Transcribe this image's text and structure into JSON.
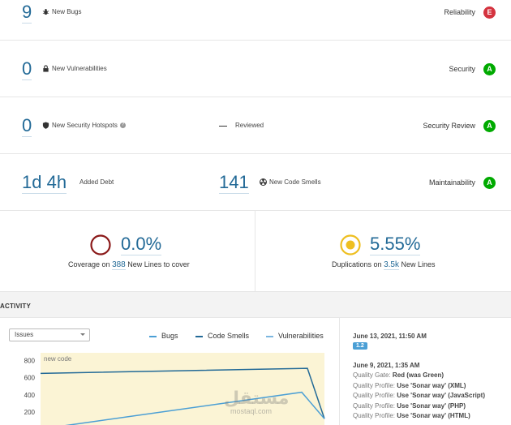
{
  "metrics": {
    "bugs": {
      "value": "9",
      "label": "New Bugs",
      "rating_label": "Reliability",
      "rating": "E"
    },
    "vulnerabilities": {
      "value": "0",
      "label": "New Vulnerabilities",
      "rating_label": "Security",
      "rating": "A"
    },
    "hotspots": {
      "value": "0",
      "label": "New Security Hotspots",
      "reviewed_label": "Reviewed",
      "rating_label": "Security Review",
      "rating": "A"
    },
    "debt": {
      "value": "1d 4h",
      "label": "Added Debt",
      "smells_value": "141",
      "smells_label": "New Code Smells",
      "rating_label": "Maintainability",
      "rating": "A"
    }
  },
  "coverage": {
    "value": "0.0%",
    "prefix": "Coverage on",
    "lines": "388",
    "suffix": "New Lines to cover"
  },
  "duplications": {
    "value": "5.55%",
    "prefix": "Duplications on",
    "lines": "3.5k",
    "suffix": "New Lines"
  },
  "activity": {
    "heading": "ACTIVITY",
    "select_value": "Issues",
    "legend": [
      "Bugs",
      "Code Smells",
      "Vulnerabilities"
    ],
    "new_code_label": "new code",
    "watermark": "مستقل",
    "watermark_url": "mostaql.com"
  },
  "chart_data": {
    "type": "line",
    "y_ticks": [
      "800",
      "600",
      "400",
      "200"
    ],
    "ylim": [
      0,
      900
    ],
    "series": [
      {
        "name": "Code Smells",
        "color": "#236a97",
        "points": [
          [
            0,
            650
          ],
          [
            0.94,
            710
          ],
          [
            1.0,
            120
          ]
        ]
      },
      {
        "name": "Bugs",
        "color": "#4b9fd5",
        "points": [
          [
            0,
            0
          ],
          [
            0.92,
            430
          ],
          [
            1.0,
            120
          ]
        ]
      }
    ]
  },
  "events": {
    "date1": "June 13, 2021, 11:50 AM",
    "version": "1.2",
    "date2": "June 9, 2021, 1:35 AM",
    "items": [
      {
        "label": "Quality Gate:",
        "value": "Red (was Green)"
      },
      {
        "label": "Quality Profile:",
        "value": "Use 'Sonar way' (XML)"
      },
      {
        "label": "Quality Profile:",
        "value": "Use 'Sonar way' (JavaScript)"
      },
      {
        "label": "Quality Profile:",
        "value": "Use 'Sonar way' (PHP)"
      },
      {
        "label": "Quality Profile:",
        "value": "Use 'Sonar way' (HTML)"
      }
    ]
  },
  "colors": {
    "accent": "#236a97",
    "rating_e": "#d4333f",
    "rating_a": "#00aa00",
    "coverage_ring": "#8b1a1a",
    "dup_ring": "#eebf21"
  }
}
